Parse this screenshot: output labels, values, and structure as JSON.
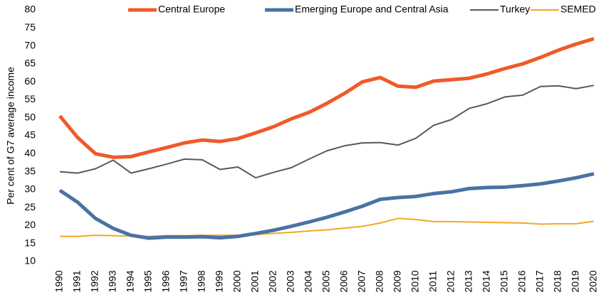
{
  "chart_data": {
    "type": "line",
    "y_label": "Per cent of G7 average income",
    "categories": [
      "1990",
      "1991",
      "1992",
      "1993",
      "1994",
      "1995",
      "1996",
      "1997",
      "1998",
      "1999",
      "2000",
      "2001",
      "2002",
      "2003",
      "2004",
      "2005",
      "2006",
      "2007",
      "2008",
      "2009",
      "2010",
      "2011",
      "2012",
      "2013",
      "2014",
      "2015",
      "2016",
      "2017",
      "2018",
      "2019",
      "2020"
    ],
    "series": [
      {
        "name": "Central Europe",
        "color": "#f05a28",
        "width": 5,
        "values": [
          50.5,
          44.5,
          40,
          39,
          39.2,
          40.5,
          41.7,
          43,
          43.8,
          43.4,
          44.2,
          45.8,
          47.5,
          49.7,
          51.5,
          54,
          56.8,
          60,
          61.2,
          58.8,
          58.5,
          60.2,
          60.6,
          61,
          62.2,
          63.7,
          65,
          66.8,
          68.8,
          70.5,
          72
        ]
      },
      {
        "name": "Emerging Europe and Central Asia",
        "color": "#4a72a4",
        "width": 5,
        "values": [
          29.8,
          26.5,
          22,
          19.2,
          17.3,
          16.5,
          16.8,
          16.8,
          16.9,
          16.6,
          17,
          17.8,
          18.7,
          19.8,
          21,
          22.3,
          23.8,
          25.4,
          27.3,
          27.8,
          28.1,
          28.9,
          29.4,
          30.3,
          30.6,
          30.7,
          31.1,
          31.6,
          32.4,
          33.3,
          34.4
        ]
      },
      {
        "name": "Turkey",
        "color": "#595959",
        "width": 2,
        "values": [
          35,
          34.6,
          35.8,
          38.2,
          34.6,
          35.8,
          37.1,
          38.5,
          38.3,
          35.6,
          36.3,
          33.3,
          34.8,
          36.1,
          38.5,
          40.8,
          42.2,
          43,
          43.1,
          42.4,
          44.3,
          47.9,
          49.5,
          52.6,
          53.9,
          55.8,
          56.3,
          58.7,
          58.9,
          58.1,
          59
        ]
      },
      {
        "name": "SEMED",
        "color": "#f5a623",
        "width": 2,
        "values": [
          17,
          17,
          17.3,
          17.2,
          17.1,
          17,
          17.2,
          17.2,
          17.3,
          17.3,
          17.3,
          17.5,
          17.8,
          18.1,
          18.5,
          18.8,
          19.3,
          19.8,
          20.7,
          22,
          21.7,
          21.1,
          21.1,
          21,
          20.9,
          20.8,
          20.7,
          20.4,
          20.5,
          20.5,
          21.2
        ]
      }
    ],
    "ylim": [
      10,
      80
    ],
    "yticks": [
      10,
      15,
      20,
      25,
      30,
      35,
      40,
      45,
      50,
      55,
      60,
      65,
      70,
      75,
      80
    ],
    "grid": false,
    "legend": "top"
  }
}
